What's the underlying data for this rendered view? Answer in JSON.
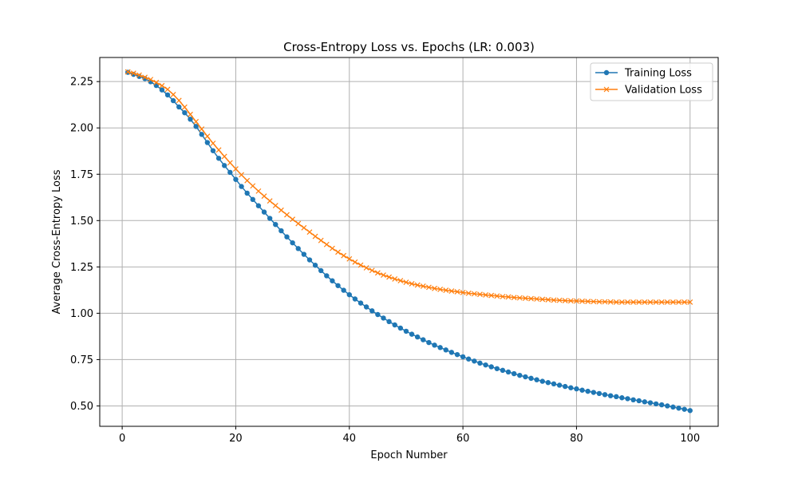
{
  "chart_data": {
    "type": "line",
    "title": "Cross-Entropy Loss vs. Epochs (LR: 0.003)",
    "xlabel": "Epoch Number",
    "ylabel": "Average Cross-Entropy Loss",
    "xlim": [
      -3.95,
      104.95
    ],
    "ylim": [
      0.39,
      2.38
    ],
    "x_ticks": [
      0,
      20,
      40,
      60,
      80,
      100
    ],
    "x_tick_labels": [
      "0",
      "20",
      "40",
      "60",
      "80",
      "100"
    ],
    "y_ticks": [
      0.5,
      0.75,
      1.0,
      1.25,
      1.5,
      1.75,
      2.0,
      2.25
    ],
    "y_tick_labels": [
      "0.50",
      "0.75",
      "1.00",
      "1.25",
      "1.50",
      "1.75",
      "2.00",
      "2.25"
    ],
    "grid": true,
    "legend_position": "top-right",
    "series": [
      {
        "name": "Training Loss",
        "color": "#1f77b4",
        "marker": "circle",
        "x": [
          1,
          2,
          3,
          4,
          5,
          6,
          7,
          8,
          9,
          10,
          11,
          12,
          13,
          14,
          15,
          16,
          17,
          18,
          19,
          20,
          21,
          22,
          23,
          24,
          25,
          26,
          27,
          28,
          29,
          30,
          31,
          32,
          33,
          34,
          35,
          36,
          37,
          38,
          39,
          40,
          41,
          42,
          43,
          44,
          45,
          46,
          47,
          48,
          49,
          50,
          51,
          52,
          53,
          54,
          55,
          56,
          57,
          58,
          59,
          60,
          61,
          62,
          63,
          64,
          65,
          66,
          67,
          68,
          69,
          70,
          71,
          72,
          73,
          74,
          75,
          76,
          77,
          78,
          79,
          80,
          81,
          82,
          83,
          84,
          85,
          86,
          87,
          88,
          89,
          90,
          91,
          92,
          93,
          94,
          95,
          96,
          97,
          98,
          99,
          100
        ],
        "values": [
          2.3,
          2.289,
          2.278,
          2.266,
          2.249,
          2.229,
          2.205,
          2.178,
          2.147,
          2.113,
          2.082,
          2.047,
          2.008,
          1.965,
          1.921,
          1.877,
          1.836,
          1.797,
          1.76,
          1.722,
          1.684,
          1.648,
          1.614,
          1.58,
          1.546,
          1.512,
          1.479,
          1.445,
          1.412,
          1.38,
          1.349,
          1.318,
          1.288,
          1.259,
          1.23,
          1.202,
          1.175,
          1.149,
          1.124,
          1.1,
          1.077,
          1.055,
          1.034,
          1.013,
          0.993,
          0.974,
          0.955,
          0.937,
          0.92,
          0.903,
          0.887,
          0.872,
          0.857,
          0.842,
          0.828,
          0.815,
          0.802,
          0.789,
          0.777,
          0.765,
          0.753,
          0.742,
          0.731,
          0.721,
          0.711,
          0.701,
          0.692,
          0.683,
          0.674,
          0.665,
          0.657,
          0.649,
          0.641,
          0.633,
          0.626,
          0.619,
          0.612,
          0.605,
          0.598,
          0.592,
          0.585,
          0.579,
          0.573,
          0.567,
          0.561,
          0.555,
          0.55,
          0.544,
          0.539,
          0.533,
          0.528,
          0.522,
          0.517,
          0.511,
          0.506,
          0.5,
          0.494,
          0.488,
          0.482,
          0.475
        ]
      },
      {
        "name": "Validation Loss",
        "color": "#ff7f0e",
        "marker": "x",
        "x": [
          1,
          2,
          3,
          4,
          5,
          6,
          7,
          8,
          9,
          10,
          11,
          12,
          13,
          14,
          15,
          16,
          17,
          18,
          19,
          20,
          21,
          22,
          23,
          24,
          25,
          26,
          27,
          28,
          29,
          30,
          31,
          32,
          33,
          34,
          35,
          36,
          37,
          38,
          39,
          40,
          41,
          42,
          43,
          44,
          45,
          46,
          47,
          48,
          49,
          50,
          51,
          52,
          53,
          54,
          55,
          56,
          57,
          58,
          59,
          60,
          61,
          62,
          63,
          64,
          65,
          66,
          67,
          68,
          69,
          70,
          71,
          72,
          73,
          74,
          75,
          76,
          77,
          78,
          79,
          80,
          81,
          82,
          83,
          84,
          85,
          86,
          87,
          88,
          89,
          90,
          91,
          92,
          93,
          94,
          95,
          96,
          97,
          98,
          99,
          100
        ],
        "values": [
          2.302,
          2.295,
          2.285,
          2.273,
          2.261,
          2.245,
          2.228,
          2.208,
          2.18,
          2.148,
          2.112,
          2.073,
          2.034,
          1.994,
          1.955,
          1.917,
          1.881,
          1.846,
          1.812,
          1.779,
          1.747,
          1.716,
          1.687,
          1.659,
          1.632,
          1.606,
          1.581,
          1.556,
          1.531,
          1.507,
          1.484,
          1.461,
          1.438,
          1.415,
          1.393,
          1.371,
          1.35,
          1.33,
          1.311,
          1.293,
          1.276,
          1.26,
          1.245,
          1.231,
          1.218,
          1.206,
          1.195,
          1.185,
          1.176,
          1.167,
          1.159,
          1.152,
          1.146,
          1.14,
          1.134,
          1.129,
          1.124,
          1.12,
          1.116,
          1.112,
          1.108,
          1.105,
          1.102,
          1.099,
          1.096,
          1.093,
          1.09,
          1.088,
          1.085,
          1.083,
          1.081,
          1.079,
          1.077,
          1.075,
          1.073,
          1.071,
          1.07,
          1.068,
          1.067,
          1.066,
          1.065,
          1.064,
          1.063,
          1.062,
          1.062,
          1.061,
          1.06,
          1.06,
          1.06,
          1.06,
          1.06,
          1.06,
          1.06,
          1.06,
          1.06,
          1.06,
          1.06,
          1.06,
          1.06,
          1.06
        ]
      }
    ]
  }
}
